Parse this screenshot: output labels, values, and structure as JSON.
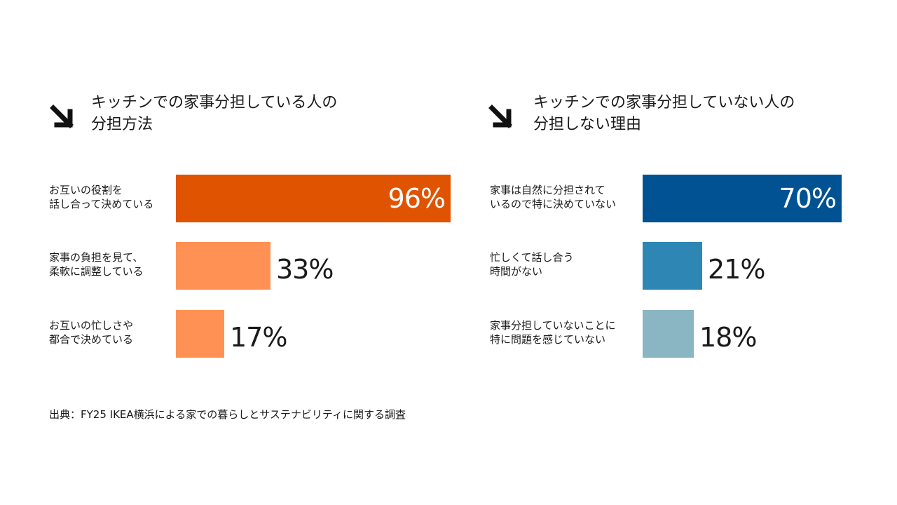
{
  "colors": {
    "left_primary": "#E05300",
    "left_secondary": "#FF9155",
    "right_primary": "#005293",
    "right_secondary": "#2E86B5",
    "right_tertiary": "#89B6C2",
    "arrow": "#111111"
  },
  "icons": {
    "title_arrow": "arrow-down-right-icon"
  },
  "chart_data": [
    {
      "type": "bar",
      "orientation": "horizontal",
      "title": "キッチンでの家事分担している人の分担方法",
      "title_lines": [
        "キッチンでの家事分担している人の",
        "分担方法"
      ],
      "xlim": [
        0,
        100
      ],
      "grid": false,
      "categories": [
        "お互いの役割を話し合って決めている",
        "家事の負担を見て、柔軟に調整している",
        "お互いの忙しさや都合で決めている"
      ],
      "category_lines": [
        [
          "お互いの役割を",
          "話し合って決めている"
        ],
        [
          "家事の負担を見て、",
          "柔軟に調整している"
        ],
        [
          "お互いの忙しさや",
          "都合で決めている"
        ]
      ],
      "values": [
        96,
        33,
        17
      ],
      "value_labels": [
        "96%",
        "33%",
        "17%"
      ],
      "bar_colors": [
        "#E05300",
        "#FF9155",
        "#FF9155"
      ]
    },
    {
      "type": "bar",
      "orientation": "horizontal",
      "title": "キッチンでの家事分担していない人の分担しない理由",
      "title_lines": [
        "キッチンでの家事分担していない人の",
        "分担しない理由"
      ],
      "xlim": [
        0,
        100
      ],
      "grid": false,
      "categories": [
        "家事は自然に分担されているので特に決めていない",
        "忙しくて話し合う時間がない",
        "家事分担していないことに特に問題を感じていない"
      ],
      "category_lines": [
        [
          "家事は自然に分担されて",
          "いるので特に決めていない"
        ],
        [
          "忙しくて話し合う",
          "時間がない"
        ],
        [
          "家事分担していないことに",
          "特に問題を感じていない"
        ]
      ],
      "values": [
        70,
        21,
        18
      ],
      "value_labels": [
        "70%",
        "21%",
        "18%"
      ],
      "bar_colors": [
        "#005293",
        "#2E86B5",
        "#89B6C2"
      ]
    }
  ],
  "source": "出典：FY25 IKEA横浜による家での暮らしとサステナビリティに関する調査"
}
